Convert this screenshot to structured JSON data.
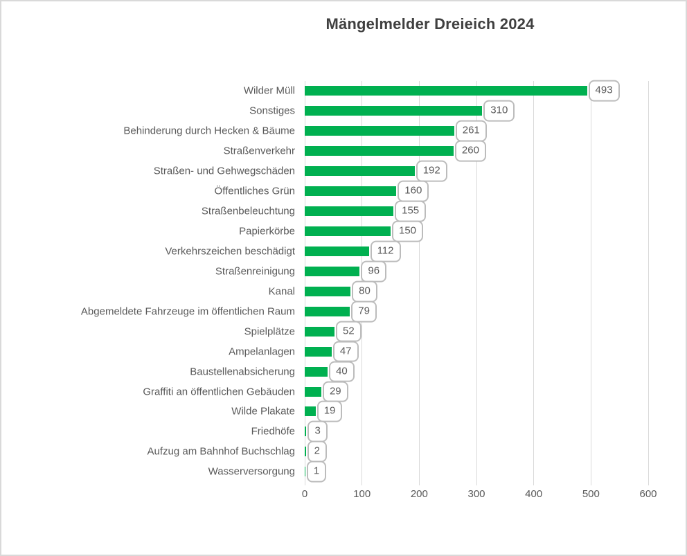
{
  "title": "Mängelmelder Dreieich 2024",
  "chart_data": {
    "type": "bar",
    "orientation": "horizontal",
    "title": "Mängelmelder Dreieich 2024",
    "xlabel": "",
    "ylabel": "",
    "categories": [
      "Wilder Müll",
      "Sonstiges",
      "Behinderung durch Hecken & Bäume",
      "Straßenverkehr",
      "Straßen- und Gehwegschäden",
      "Öffentliches Grün",
      "Straßenbeleuchtung",
      "Papierkörbe",
      "Verkehrszeichen beschädigt",
      "Straßenreinigung",
      "Kanal",
      "Abgemeldete Fahrzeuge im öffentlichen Raum",
      "Spielplätze",
      "Ampelanlagen",
      "Baustellenabsicherung",
      "Graffiti an öffentlichen Gebäuden",
      "Wilde Plakate",
      "Friedhöfe",
      "Aufzug am Bahnhof Buchschlag",
      "Wasserversorgung"
    ],
    "values": [
      493,
      310,
      261,
      260,
      192,
      160,
      155,
      150,
      112,
      96,
      80,
      79,
      52,
      47,
      40,
      29,
      19,
      3,
      2,
      1
    ],
    "xlim": [
      0,
      600
    ],
    "x_ticks": [
      "0",
      "100",
      "200",
      "300",
      "400",
      "500",
      "600"
    ],
    "grid": true,
    "legend": "none",
    "data_labels": "callout-boxes-at-bar-end"
  },
  "colors": {
    "bar": "#00B050",
    "gridline": "#d9d9d9",
    "axis_text": "#595959",
    "category_text": "#595959",
    "title_text": "#404040",
    "callout_border": "#bcbcbc",
    "callout_text": "#595959",
    "frame_border": "#d9d9d9",
    "background": "#ffffff"
  }
}
